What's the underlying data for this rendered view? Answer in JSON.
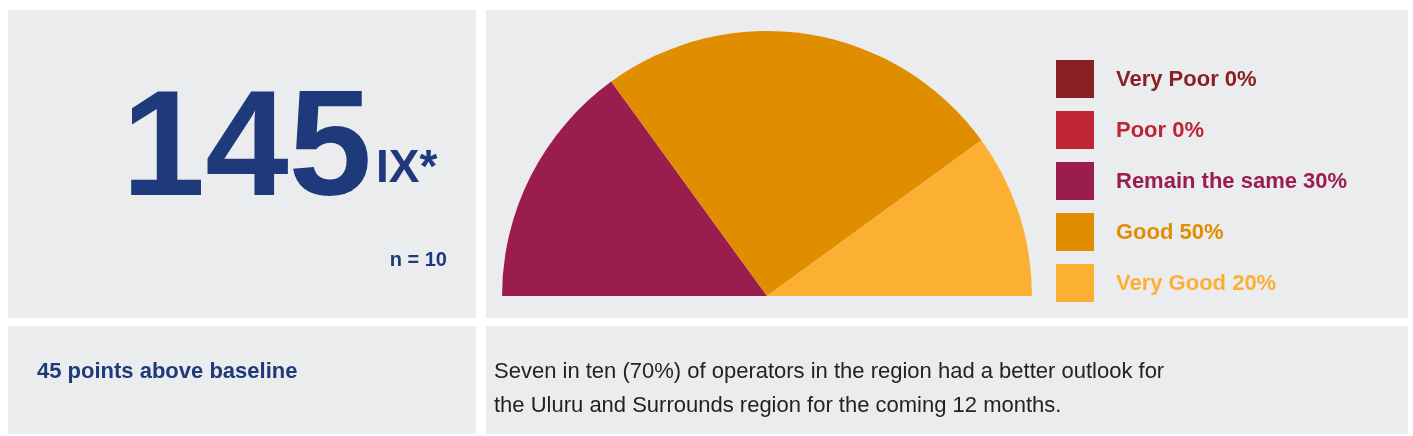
{
  "chart_data": {
    "type": "pie",
    "categories": [
      "Very Poor",
      "Poor",
      "Remain the same",
      "Good",
      "Very Good"
    ],
    "values": [
      0,
      0,
      30,
      50,
      20
    ],
    "value_labels": [
      "0%",
      "0%",
      "30%",
      "50%",
      "20%"
    ],
    "colors": [
      "#8b2024",
      "#be2535",
      "#9b1d4e",
      "#e08e00",
      "#fbb034"
    ],
    "legend": "right",
    "annotations": [
      "145",
      "IX*",
      "n = 10",
      "45 points above baseline",
      "Seven in ten (70%) of operators in the region had a better outlook for the Uluru and Surrounds region for the coming 12 months."
    ]
  }
}
